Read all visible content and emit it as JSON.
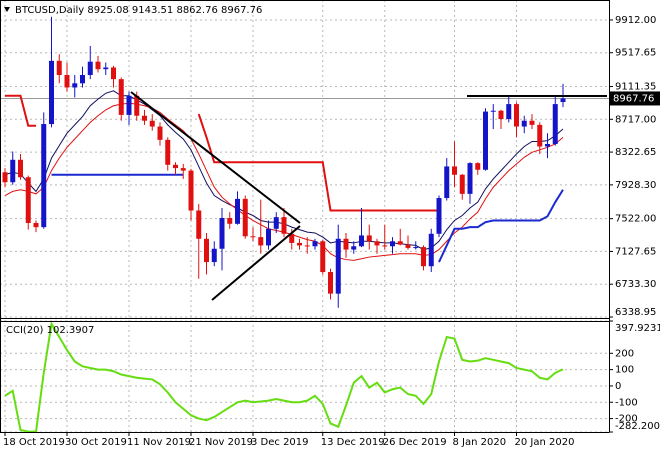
{
  "chart_data": [
    {
      "type": "candlestick",
      "title": "BTCUSD,Daily  8925.08 9143.51 8862.76 8967.76",
      "categories": [
        "18 Oct 2019",
        null,
        null,
        null,
        null,
        null,
        null,
        null,
        "30 Oct 2019",
        null,
        null,
        null,
        null,
        null,
        null,
        null,
        "11 Nov 2019",
        null,
        null,
        null,
        null,
        null,
        null,
        null,
        "21 Nov 2019",
        null,
        null,
        null,
        null,
        null,
        null,
        null,
        "3 Dec 2019",
        null,
        null,
        null,
        null,
        null,
        null,
        null,
        null,
        "13 Dec 2019",
        null,
        null,
        null,
        null,
        null,
        null,
        null,
        "26 Dec 2019",
        null,
        null,
        null,
        null,
        null,
        null,
        null,
        null,
        "8 Jan 2020",
        null,
        null,
        null,
        null,
        null,
        null,
        null,
        "20 Jan 2020",
        null,
        null,
        null,
        null,
        null,
        null
      ],
      "ohlc": [
        [
          8080,
          8130,
          7900,
          7960
        ],
        [
          7960,
          8330,
          7930,
          8230
        ],
        [
          8230,
          8300,
          7990,
          8020
        ],
        [
          8020,
          8040,
          7390,
          7470
        ],
        [
          7470,
          7500,
          7360,
          7420
        ],
        [
          7420,
          8800,
          7400,
          8660
        ],
        [
          8660,
          9950,
          8620,
          9420
        ],
        [
          9420,
          9500,
          9150,
          9250
        ],
        [
          9250,
          9400,
          9050,
          9100
        ],
        [
          9100,
          9250,
          8980,
          9150
        ],
        [
          9150,
          9350,
          9100,
          9250
        ],
        [
          9250,
          9600,
          9200,
          9410
        ],
        [
          9410,
          9480,
          9280,
          9320
        ],
        [
          9320,
          9400,
          9250,
          9340
        ],
        [
          9340,
          9360,
          9100,
          9200
        ],
        [
          9200,
          9220,
          8700,
          8770
        ],
        [
          8770,
          9050,
          8650,
          9000
        ],
        [
          9000,
          9050,
          8700,
          8760
        ],
        [
          8760,
          8830,
          8650,
          8700
        ],
        [
          8700,
          8780,
          8580,
          8630
        ],
        [
          8630,
          8680,
          8400,
          8470
        ],
        [
          8470,
          8500,
          8100,
          8170
        ],
        [
          8170,
          8200,
          8050,
          8130
        ],
        [
          8130,
          8180,
          8000,
          8100
        ],
        [
          8100,
          8120,
          7500,
          7620
        ],
        [
          7620,
          7700,
          6800,
          7280
        ],
        [
          7280,
          7350,
          6850,
          7000
        ],
        [
          7000,
          7250,
          6950,
          7160
        ],
        [
          7160,
          7650,
          6900,
          7530
        ],
        [
          7530,
          7600,
          7400,
          7460
        ],
        [
          7460,
          7850,
          7450,
          7760
        ],
        [
          7760,
          7800,
          7280,
          7310
        ],
        [
          7310,
          7420,
          7250,
          7300
        ],
        [
          7300,
          7750,
          7100,
          7200
        ],
        [
          7200,
          7500,
          7150,
          7400
        ],
        [
          7400,
          7600,
          7350,
          7540
        ],
        [
          7540,
          7650,
          7300,
          7340
        ],
        [
          7340,
          7400,
          7150,
          7230
        ],
        [
          7230,
          7280,
          7150,
          7200
        ],
        [
          7200,
          7300,
          7100,
          7190
        ],
        [
          7190,
          7280,
          7150,
          7250
        ],
        [
          7250,
          7270,
          6850,
          6880
        ],
        [
          6880,
          6920,
          6550,
          6620
        ],
        [
          6620,
          7450,
          6450,
          7280
        ],
        [
          7280,
          7350,
          7050,
          7150
        ],
        [
          7150,
          7250,
          7100,
          7190
        ],
        [
          7190,
          7650,
          7180,
          7320
        ],
        [
          7320,
          7450,
          7150,
          7250
        ],
        [
          7250,
          7280,
          7100,
          7200
        ],
        [
          7200,
          7450,
          7150,
          7190
        ],
        [
          7190,
          7300,
          7100,
          7250
        ],
        [
          7250,
          7400,
          7200,
          7210
        ],
        [
          7210,
          7320,
          7150,
          7170
        ],
        [
          7170,
          7250,
          7150,
          7180
        ],
        [
          7180,
          7200,
          6900,
          6950
        ],
        [
          6950,
          7400,
          6880,
          7340
        ],
        [
          7340,
          7800,
          7300,
          7770
        ],
        [
          7770,
          8250,
          7740,
          8150
        ],
        [
          8150,
          8450,
          7900,
          8050
        ],
        [
          8050,
          8060,
          7750,
          7820
        ],
        [
          7820,
          8200,
          7700,
          8190
        ],
        [
          8190,
          8200,
          8050,
          8110
        ],
        [
          8110,
          8850,
          8100,
          8810
        ],
        [
          8810,
          8900,
          8600,
          8820
        ],
        [
          8820,
          8830,
          8600,
          8720
        ],
        [
          8720,
          9000,
          8680,
          8900
        ],
        [
          8900,
          8920,
          8500,
          8630
        ],
        [
          8630,
          8760,
          8550,
          8700
        ],
        [
          8700,
          8780,
          8600,
          8650
        ],
        [
          8650,
          8680,
          8300,
          8390
        ],
        [
          8390,
          8550,
          8250,
          8420
        ],
        [
          8420,
          9000,
          8400,
          8900
        ],
        [
          8925.08,
          9143.51,
          8862.76,
          8967.76
        ]
      ],
      "up_color": "#1414c8",
      "down_color": "#e01010",
      "overlays": [
        {
          "color": "#101060",
          "values": [
            8050,
            8080,
            8060,
            7950,
            7850,
            8000,
            8250,
            8400,
            8550,
            8650,
            8750,
            8880,
            8960,
            9030,
            9060,
            9000,
            9000,
            8950,
            8900,
            8830,
            8760,
            8650,
            8560,
            8480,
            8350,
            8150,
            7950,
            7800,
            7740,
            7690,
            7650,
            7600,
            7560,
            7500,
            7480,
            7480,
            7460,
            7420,
            7390,
            7360,
            7350,
            7300,
            7230,
            7250,
            7240,
            7230,
            7250,
            7250,
            7240,
            7230,
            7230,
            7220,
            7210,
            7200,
            7150,
            7170,
            7250,
            7390,
            7500,
            7560,
            7650,
            7720,
            7880,
            8000,
            8100,
            8200,
            8300,
            8390,
            8450,
            8450,
            8460,
            8520,
            8600
          ]
        },
        {
          "color": "#e01010",
          "values": [
            7800,
            7850,
            7870,
            7850,
            7820,
            7900,
            8100,
            8250,
            8380,
            8480,
            8580,
            8680,
            8760,
            8830,
            8880,
            8900,
            8910,
            8900,
            8880,
            8850,
            8800,
            8720,
            8650,
            8580,
            8480,
            8300,
            8100,
            7900,
            7780,
            7700,
            7630,
            7560,
            7500,
            7450,
            7400,
            7380,
            7360,
            7330,
            7300,
            7270,
            7250,
            7200,
            7100,
            7050,
            7030,
            7020,
            7040,
            7060,
            7070,
            7080,
            7090,
            7100,
            7100,
            7100,
            7080,
            7090,
            7150,
            7250,
            7350,
            7420,
            7520,
            7600,
            7760,
            7900,
            8000,
            8100,
            8180,
            8260,
            8320,
            8350,
            8380,
            8420,
            8500
          ]
        },
        {
          "color": "#e01010",
          "values": [
            9000,
            9000,
            9000,
            8640,
            8640,
            null,
            null,
            null,
            null,
            null,
            null,
            null,
            null,
            null,
            null,
            null,
            null,
            null,
            null,
            null,
            null,
            null,
            null,
            null,
            null,
            8780,
            8500,
            8200,
            8200,
            8200,
            8200,
            8200,
            8200,
            8200,
            8200,
            8200,
            8200,
            8200,
            8200,
            8200,
            8200,
            8200,
            7620,
            7620,
            7620,
            7620,
            7620,
            7620,
            7620,
            7620,
            7620,
            7620,
            7620,
            7620,
            7620,
            7620,
            7620,
            null,
            null,
            null,
            null,
            null,
            null,
            null,
            null,
            null,
            null,
            null,
            null,
            null,
            null,
            null,
            null
          ]
        },
        {
          "color": "#1a2ad0",
          "values": [
            null,
            null,
            null,
            null,
            null,
            null,
            8050,
            8050,
            8050,
            8050,
            8050,
            8050,
            8050,
            8050,
            8050,
            8050,
            8050,
            8050,
            8050,
            8050,
            8050,
            8050,
            8050,
            8050,
            null,
            null,
            null,
            null,
            null,
            null,
            null,
            null,
            null,
            null,
            null,
            null,
            null,
            null,
            null,
            null,
            null,
            null,
            null,
            null,
            null,
            null,
            null,
            null,
            null,
            null,
            null,
            null,
            null,
            null,
            null,
            null,
            7000,
            7200,
            7400,
            7400,
            7420,
            7420,
            7480,
            7500,
            7500,
            7500,
            7500,
            7500,
            7500,
            7500,
            7550,
            7720,
            7870
          ]
        }
      ],
      "ylim": [
        6327,
        10128
      ],
      "yticks": [
        {
          "value": 9912,
          "label": "9912.00"
        },
        {
          "value": 9517.65,
          "label": "9517.65"
        },
        {
          "value": 9111.35,
          "label": "9111.35"
        },
        {
          "value": 8717,
          "label": "8717.00"
        },
        {
          "value": 8322.65,
          "label": "8322.65"
        },
        {
          "value": 7928.3,
          "label": "7928.30"
        },
        {
          "value": 7522,
          "label": "7522.00"
        },
        {
          "value": 7127.65,
          "label": "7127.65"
        },
        {
          "value": 6733.3,
          "label": "6733.30"
        },
        {
          "value": 6338.95,
          "label": "6338.95"
        }
      ],
      "grid": true
    },
    {
      "type": "line",
      "title": "CCI(20) 102.3907",
      "series": [
        {
          "color": "#66dd11",
          "values": [
            -60,
            -30,
            -270,
            -280,
            -280,
            80,
            380,
            300,
            220,
            150,
            120,
            110,
            100,
            100,
            90,
            70,
            60,
            50,
            45,
            40,
            10,
            -40,
            -100,
            -140,
            -180,
            -200,
            -210,
            -190,
            -160,
            -130,
            -100,
            -90,
            -100,
            -95,
            -90,
            -80,
            -90,
            -100,
            -100,
            -90,
            -60,
            -110,
            -230,
            -250,
            -120,
            20,
            60,
            -10,
            20,
            -40,
            -20,
            -10,
            -50,
            -60,
            -110,
            -50,
            150,
            300,
            290,
            160,
            150,
            155,
            170,
            160,
            150,
            140,
            110,
            100,
            90,
            50,
            40,
            80,
            102.3907
          ]
        }
      ],
      "ylim": [
        -282.2003,
        397.9231
      ],
      "yticks": [
        397.9231,
        200,
        100,
        0,
        -100,
        -200,
        -282.2003
      ],
      "grid": true
    }
  ]
}
